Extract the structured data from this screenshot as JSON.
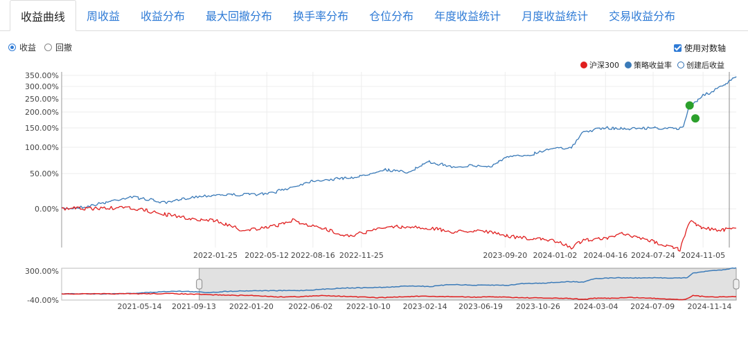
{
  "tabs": [
    {
      "label": "收益曲线",
      "active": true
    },
    {
      "label": "周收益",
      "active": false
    },
    {
      "label": "收益分布",
      "active": false
    },
    {
      "label": "最大回撤分布",
      "active": false
    },
    {
      "label": "换手率分布",
      "active": false
    },
    {
      "label": "仓位分布",
      "active": false
    },
    {
      "label": "年度收益统计",
      "active": false
    },
    {
      "label": "月度收益统计",
      "active": false
    },
    {
      "label": "交易收益分布",
      "active": false
    }
  ],
  "view_mode": {
    "options": [
      {
        "label": "收益",
        "selected": true
      },
      {
        "label": "回撤",
        "selected": false
      }
    ]
  },
  "log_axis": {
    "label": "使用对数轴",
    "checked": true
  },
  "legend": [
    {
      "label": "沪深300",
      "color": "#e01f1f",
      "style": "filled"
    },
    {
      "label": "策略收益率",
      "color": "#3a7ab8",
      "style": "filled"
    },
    {
      "label": "创建后收益",
      "color": "#2a6cb0",
      "style": "hollow"
    }
  ],
  "chart_data": {
    "type": "line",
    "log_scale": true,
    "y_ticks": [
      "350.00%",
      "300.00%",
      "250.00%",
      "200.00%",
      "150.00%",
      "100.00%",
      "50.00%",
      "0.00%"
    ],
    "y_tick_values": [
      350,
      300,
      250,
      200,
      150,
      100,
      50,
      0
    ],
    "x_ticks": [
      "2022-01-25",
      "2022-05-12",
      "2022-08-16",
      "2022-11-25",
      "2023-09-20",
      "2024-01-02",
      "2024-04-16",
      "2024-07-24",
      "2024-11-05"
    ],
    "x_tick_dates": [
      "2022-01-25",
      "2022-05-12",
      "2022-08-16",
      "2022-11-25",
      "2023-09-20",
      "2024-01-02",
      "2024-04-16",
      "2024-07-24",
      "2024-11-05"
    ],
    "x_range": [
      "2021-03-11",
      "2025-01-13"
    ],
    "series": [
      {
        "name": "策略收益率",
        "color": "#3a7ab8",
        "points": [
          [
            "2021-03-11",
            0
          ],
          [
            "2021-05-01",
            3
          ],
          [
            "2021-06-15",
            10
          ],
          [
            "2021-08-01",
            17
          ],
          [
            "2021-09-01",
            14
          ],
          [
            "2021-10-15",
            8
          ],
          [
            "2021-12-01",
            16
          ],
          [
            "2022-01-25",
            20
          ],
          [
            "2022-03-15",
            20
          ],
          [
            "2022-05-12",
            21
          ],
          [
            "2022-06-30",
            30
          ],
          [
            "2022-08-16",
            40
          ],
          [
            "2022-09-30",
            42
          ],
          [
            "2022-11-25",
            46
          ],
          [
            "2023-01-10",
            58
          ],
          [
            "2023-02-28",
            52
          ],
          [
            "2023-04-15",
            72
          ],
          [
            "2023-06-01",
            63
          ],
          [
            "2023-07-15",
            65
          ],
          [
            "2023-08-20",
            63
          ],
          [
            "2023-09-20",
            80
          ],
          [
            "2023-11-10",
            86
          ],
          [
            "2024-01-02",
            100
          ],
          [
            "2024-02-05",
            98
          ],
          [
            "2024-03-01",
            140
          ],
          [
            "2024-04-16",
            150
          ],
          [
            "2024-06-01",
            148
          ],
          [
            "2024-07-24",
            150
          ],
          [
            "2024-09-15",
            147
          ],
          [
            "2024-09-25",
            155
          ],
          [
            "2024-10-08",
            225
          ],
          [
            "2024-11-05",
            263
          ],
          [
            "2024-12-15",
            300
          ],
          [
            "2025-01-13",
            345
          ]
        ]
      },
      {
        "name": "沪深300",
        "color": "#e01f1f",
        "points": [
          [
            "2021-03-11",
            0
          ],
          [
            "2021-06-15",
            1
          ],
          [
            "2021-08-01",
            1
          ],
          [
            "2021-10-15",
            -6
          ],
          [
            "2021-12-15",
            -11
          ],
          [
            "2022-01-25",
            -12
          ],
          [
            "2022-03-20",
            -22
          ],
          [
            "2022-05-12",
            -20
          ],
          [
            "2022-07-05",
            -12
          ],
          [
            "2022-08-16",
            -18
          ],
          [
            "2022-10-30",
            -28
          ],
          [
            "2022-11-25",
            -25
          ],
          [
            "2023-01-27",
            -18
          ],
          [
            "2023-04-15",
            -20
          ],
          [
            "2023-06-01",
            -24
          ],
          [
            "2023-08-01",
            -22
          ],
          [
            "2023-09-20",
            -28
          ],
          [
            "2023-11-15",
            -31
          ],
          [
            "2024-01-02",
            -33
          ],
          [
            "2024-02-05",
            -40
          ],
          [
            "2024-03-01",
            -32
          ],
          [
            "2024-04-16",
            -31
          ],
          [
            "2024-05-20",
            -26
          ],
          [
            "2024-07-24",
            -34
          ],
          [
            "2024-09-18",
            -42
          ],
          [
            "2024-10-08",
            -13
          ],
          [
            "2024-11-05",
            -20
          ],
          [
            "2024-12-15",
            -22
          ],
          [
            "2025-01-13",
            -20
          ]
        ]
      }
    ],
    "markers": [
      {
        "date": "2024-10-08",
        "value": 225,
        "color": "#2ca02c"
      },
      {
        "date": "2024-10-20",
        "value": 180,
        "color": "#2ca02c"
      }
    ],
    "navigator": {
      "y_ticks": [
        "300.00%",
        "-40.00%"
      ],
      "y_tick_values": [
        300,
        -40
      ],
      "x_ticks": [
        "2021-05-14",
        "2021-09-13",
        "2022-01-20",
        "2022-06-02",
        "2022-10-10",
        "2023-02-14",
        "2023-06-19",
        "2023-10-26",
        "2024-03-04",
        "2024-07-09",
        "2024-11-14"
      ],
      "x_range": [
        "2020-11-20",
        "2025-01-13"
      ],
      "selection": [
        "2021-09-25",
        "2025-01-13"
      ]
    }
  }
}
